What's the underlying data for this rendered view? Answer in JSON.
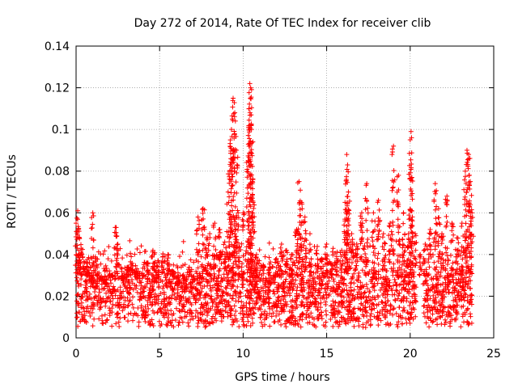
{
  "chart_data": {
    "type": "scatter",
    "title": "Day 272 of 2014, Rate Of TEC Index for receiver clib",
    "xlabel": "GPS time / hours",
    "ylabel": "ROTI / TECUs",
    "xlim": [
      0,
      25
    ],
    "ylim": [
      0,
      0.14
    ],
    "xticks": [
      0,
      5,
      10,
      15,
      20,
      25
    ],
    "xtick_labels": [
      "0",
      "5",
      "10",
      "15",
      "20",
      "25"
    ],
    "yticks": [
      0,
      0.02,
      0.04,
      0.06,
      0.08,
      0.1,
      0.12,
      0.14
    ],
    "ytick_labels": [
      "0",
      "0.02",
      "0.04",
      "0.06",
      "0.08",
      "0.1",
      "0.12",
      "0.14"
    ],
    "grid": true,
    "marker": "+",
    "color": "#ff0000",
    "series": [
      {
        "name": "ROTI",
        "x": [
          0.0,
          0.1,
          0.2,
          0.3,
          0.5,
          0.7,
          1.0,
          1.2,
          1.5,
          1.8,
          2.1,
          2.4,
          2.5,
          2.8,
          3.1,
          3.3,
          3.6,
          4.0,
          4.3,
          4.6,
          4.9,
          5.2,
          5.5,
          5.8,
          6.1,
          6.5,
          7.0,
          7.3,
          7.6,
          7.8,
          8.0,
          8.3,
          8.6,
          8.9,
          9.1,
          9.2,
          9.3,
          9.35,
          9.4,
          9.5,
          9.6,
          9.7,
          10.0,
          10.3,
          10.35,
          10.4,
          10.45,
          10.5,
          10.55,
          10.6,
          10.8,
          11.2,
          11.6,
          12.0,
          12.3,
          12.6,
          12.9,
          13.2,
          13.35,
          13.5,
          13.7,
          14.0,
          14.4,
          14.7,
          15.0,
          15.3,
          15.6,
          15.9,
          16.1,
          16.2,
          16.25,
          16.3,
          16.5,
          16.8,
          17.1,
          17.4,
          17.8,
          18.1,
          18.4,
          18.8,
          19.0,
          19.3,
          19.6,
          19.9,
          20.0,
          20.05,
          20.1,
          20.3,
          20.6,
          20.9,
          21.2,
          21.5,
          21.7,
          21.9,
          22.2,
          22.5,
          22.8,
          23.1,
          23.3,
          23.4,
          23.5,
          23.6,
          23.7
        ],
        "y": [
          0.055,
          0.061,
          0.048,
          0.041,
          0.036,
          0.03,
          0.06,
          0.038,
          0.028,
          0.026,
          0.03,
          0.053,
          0.045,
          0.028,
          0.034,
          0.035,
          0.032,
          0.03,
          0.036,
          0.042,
          0.037,
          0.039,
          0.04,
          0.032,
          0.026,
          0.022,
          0.027,
          0.058,
          0.062,
          0.048,
          0.05,
          0.055,
          0.052,
          0.046,
          0.07,
          0.08,
          0.1,
          0.105,
          0.115,
          0.108,
          0.09,
          0.06,
          0.06,
          0.085,
          0.11,
          0.122,
          0.12,
          0.1,
          0.075,
          0.065,
          0.04,
          0.035,
          0.034,
          0.038,
          0.045,
          0.042,
          0.04,
          0.052,
          0.075,
          0.065,
          0.058,
          0.05,
          0.042,
          0.038,
          0.045,
          0.035,
          0.038,
          0.042,
          0.065,
          0.088,
          0.083,
          0.07,
          0.05,
          0.045,
          0.06,
          0.074,
          0.06,
          0.066,
          0.05,
          0.055,
          0.092,
          0.078,
          0.06,
          0.05,
          0.095,
          0.099,
          0.077,
          0.05,
          0.04,
          0.045,
          0.052,
          0.074,
          0.062,
          0.05,
          0.068,
          0.055,
          0.048,
          0.055,
          0.08,
          0.09,
          0.088,
          0.075,
          0.06
        ]
      }
    ],
    "baseline_band": {
      "typical_min": 0.005,
      "typical_max": 0.03
    }
  }
}
